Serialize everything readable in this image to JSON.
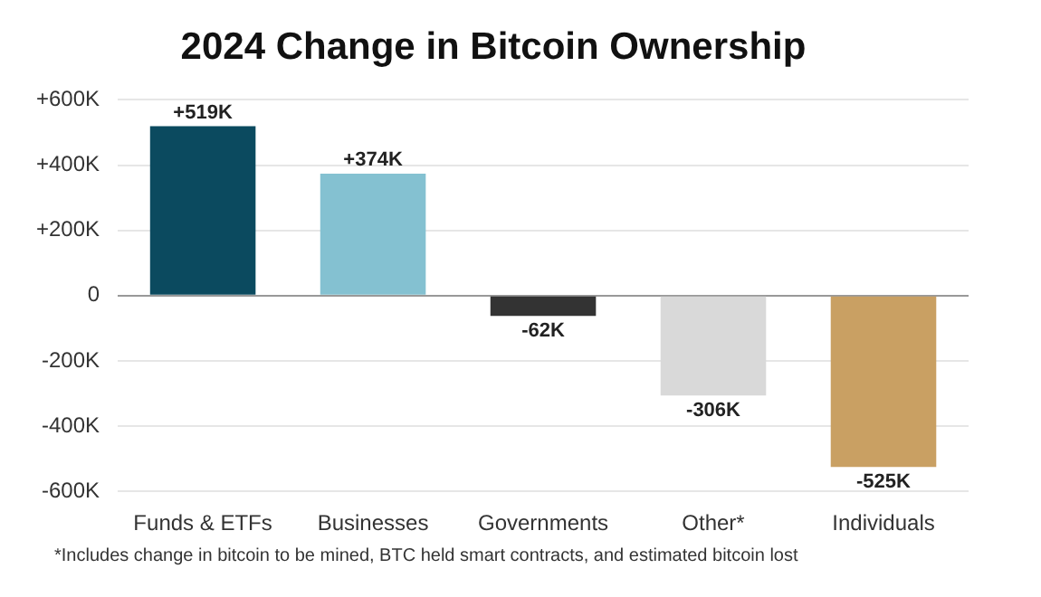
{
  "chart_data": {
    "type": "bar",
    "title": "2024 Change in Bitcoin Ownership",
    "categories": [
      "Funds & ETFs",
      "Businesses",
      "Governments",
      "Other*",
      "Individuals"
    ],
    "values": [
      519,
      374,
      -62,
      -306,
      -525
    ],
    "colors": [
      "#0b4a5f",
      "#84c1d1",
      "#333333",
      "#d9d9d9",
      "#c9a063"
    ],
    "value_labels": [
      "+519K",
      "+374K",
      "-62K",
      "-306K",
      "-525K"
    ],
    "ylim": [
      -600,
      600
    ],
    "yticks": [
      {
        "value": -600,
        "label": "-600K"
      },
      {
        "value": -400,
        "label": "-400K"
      },
      {
        "value": -200,
        "label": "-200K"
      },
      0,
      {
        "value": 200,
        "label": "+200K"
      },
      {
        "value": 400,
        "label": "+400K"
      },
      {
        "value": 600,
        "label": "+600K"
      }
    ],
    "grid": "y",
    "annotations": [
      "*Includes change in bitcoin to be mined, BTC held smart contracts, and estimated bitcoin lost"
    ]
  }
}
